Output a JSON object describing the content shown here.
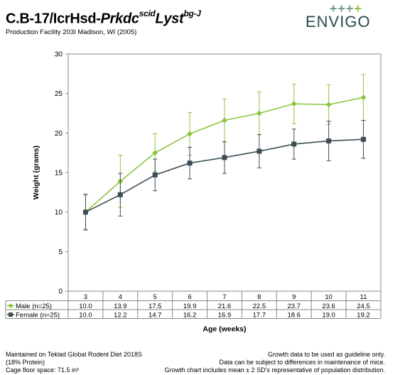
{
  "header": {
    "title_main": "C.B-17/IcrHsd-",
    "title_gene1": "Prkdc",
    "title_sup1": "scid",
    "title_gene2": "Lyst",
    "title_sup2": "bg-J",
    "subtitle": "Production Facility 203I Madison, WI (2005)"
  },
  "logo": {
    "text": "ENVIGO",
    "plus_dark": "+++",
    "plus_green": "+"
  },
  "chart_data": {
    "type": "line",
    "xlabel": "Age (weeks)",
    "ylabel": "Weight (grams)",
    "ylim": [
      0,
      30
    ],
    "yticks": [
      0,
      5,
      10,
      15,
      20,
      25,
      30
    ],
    "categories": [
      "3",
      "4",
      "5",
      "6",
      "7",
      "8",
      "9",
      "10",
      "11"
    ],
    "series": [
      {
        "name": "Male (n=25)",
        "color": "#8cc63f",
        "marker": "diamond",
        "values": [
          10.0,
          13.9,
          17.5,
          19.9,
          21.6,
          22.5,
          23.7,
          23.6,
          24.5
        ],
        "labels": [
          "10.0",
          "13.9",
          "17.5",
          "19.9",
          "21.6",
          "22.5",
          "23.7",
          "23.6",
          "24.5"
        ],
        "error": [
          2.3,
          3.3,
          2.4,
          2.7,
          2.7,
          2.7,
          2.5,
          2.5,
          2.9
        ]
      },
      {
        "name": "Female (n=25)",
        "color": "#3d4d55",
        "marker": "square",
        "values": [
          10.0,
          12.2,
          14.7,
          16.2,
          16.9,
          17.7,
          18.6,
          19.0,
          19.2
        ],
        "labels": [
          "10.0",
          "12.2",
          "14.7",
          "16.2",
          "16.9",
          "17.7",
          "18.6",
          "19.0",
          "19.2"
        ],
        "error": [
          2.2,
          2.7,
          2.0,
          2.0,
          2.0,
          2.1,
          1.9,
          2.5,
          2.4
        ]
      }
    ],
    "grid": false,
    "legend": "data-table-left"
  },
  "footer": {
    "left_1": "Maintained on Teklad Global Rodent Diet 2018S",
    "left_2": "(18% Protein)",
    "left_3": "Cage floor space: 71.5 in²",
    "right_1": "Growth data to be used as guideline only.",
    "right_2": "Data can be subject to differences in maintenance of mice.",
    "right_3": "Growth chart includes mean ± 2 SD's representative of population distribution."
  }
}
